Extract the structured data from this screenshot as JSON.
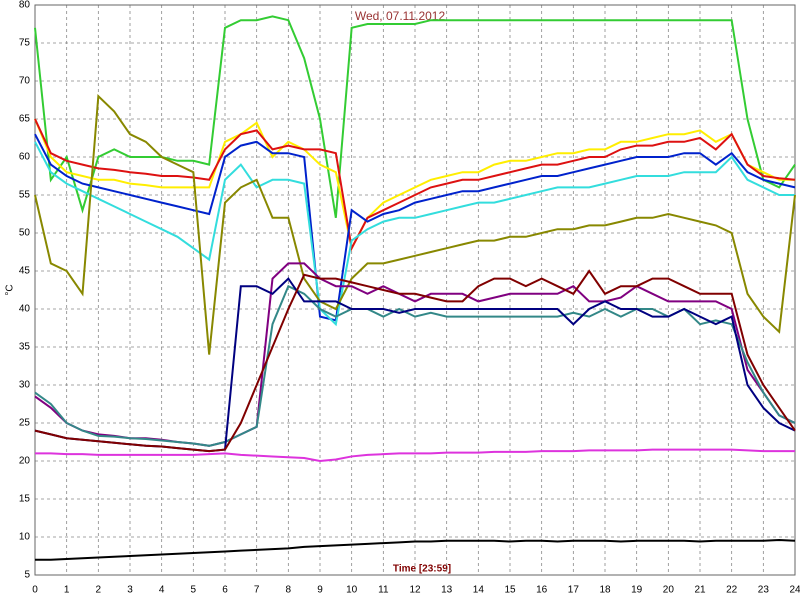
{
  "chart_data": {
    "type": "line",
    "title": "Wed, 07.11.2012",
    "x_label": "Time [23:59]",
    "y_label": "°C",
    "xlim": [
      0,
      24
    ],
    "ylim": [
      5,
      80
    ],
    "xticks": [
      0,
      1,
      2,
      3,
      4,
      5,
      6,
      7,
      8,
      9,
      10,
      11,
      12,
      13,
      14,
      15,
      16,
      17,
      18,
      19,
      20,
      21,
      22,
      23,
      24
    ],
    "yticks": [
      5,
      10,
      15,
      20,
      25,
      30,
      35,
      40,
      45,
      50,
      55,
      60,
      65,
      70,
      75,
      80
    ],
    "grid": true,
    "x": [
      0,
      0.5,
      1,
      1.5,
      2,
      2.5,
      3,
      3.5,
      4,
      4.5,
      5,
      5.5,
      6,
      6.5,
      7,
      7.5,
      8,
      8.5,
      9,
      9.5,
      10,
      10.5,
      11,
      11.5,
      12,
      12.5,
      13,
      13.5,
      14,
      14.5,
      15,
      15.5,
      16,
      16.5,
      17,
      17.5,
      18,
      18.5,
      19,
      19.5,
      20,
      20.5,
      21,
      21.5,
      22,
      22.5,
      23,
      23.5,
      24
    ],
    "series": [
      {
        "color": "#33cc33",
        "values": [
          77,
          57,
          60,
          53,
          60,
          61,
          60,
          60,
          60,
          59.5,
          59.5,
          59,
          77,
          78,
          78,
          78.5,
          78,
          73,
          65,
          52,
          77,
          77.5,
          77.5,
          77.5,
          77.5,
          78,
          78,
          78,
          78,
          78,
          78,
          78,
          78,
          78,
          78,
          78,
          78,
          78,
          78,
          78,
          78,
          78,
          78,
          78,
          78,
          65,
          57,
          56,
          59
        ]
      },
      {
        "color": "#ffee00",
        "values": [
          65,
          60,
          58,
          57.5,
          57,
          57,
          56.5,
          56.3,
          56,
          56,
          56,
          56,
          62,
          63,
          64.5,
          60,
          62,
          61,
          59,
          58,
          48,
          52,
          54,
          55,
          56,
          57,
          57.5,
          58,
          58,
          59,
          59.5,
          59.5,
          60,
          60.5,
          60.5,
          61,
          61,
          62,
          62,
          62.5,
          63,
          63,
          63.5,
          62,
          63,
          59,
          58,
          57,
          57
        ]
      },
      {
        "color": "#dd1111",
        "values": [
          65,
          60.5,
          59.5,
          59,
          58.5,
          58.3,
          58,
          57.8,
          57.5,
          57.5,
          57.3,
          57,
          61,
          63,
          63.5,
          61,
          61.5,
          61,
          61,
          60.5,
          48,
          52,
          53,
          54,
          55,
          56,
          56.5,
          57,
          57,
          57.5,
          58,
          58.5,
          59,
          59,
          59.5,
          60,
          60,
          61,
          61.5,
          61.5,
          62,
          62,
          62.5,
          61,
          63,
          59,
          57.5,
          57.2,
          57
        ]
      },
      {
        "color": "#0022cc",
        "values": [
          63,
          59,
          57.5,
          56.5,
          56,
          55.5,
          55,
          54.5,
          54,
          53.5,
          53,
          52.5,
          60,
          61.5,
          62,
          60.5,
          60.5,
          60,
          39,
          38.5,
          53,
          51.5,
          52.5,
          53,
          54,
          54.5,
          55,
          55.5,
          55.5,
          56,
          56.5,
          57,
          57.5,
          57.5,
          58,
          58.5,
          59,
          59.5,
          60,
          60,
          60,
          60.5,
          60.5,
          59,
          60.5,
          58,
          57,
          56.5,
          56
        ]
      },
      {
        "color": "#33dddd",
        "values": [
          62,
          58,
          56.5,
          55.5,
          54.5,
          53.5,
          52.5,
          51.5,
          50.5,
          49.5,
          48,
          46.5,
          57,
          59,
          56,
          57,
          57,
          56.5,
          40,
          38,
          49,
          50.5,
          51.5,
          52,
          52,
          52.5,
          53,
          53.5,
          54,
          54,
          54.5,
          55,
          55.5,
          56,
          56,
          56,
          56.5,
          57,
          57.5,
          57.5,
          57.5,
          58,
          58,
          58,
          60,
          57,
          56,
          55,
          55
        ]
      },
      {
        "color": "#888800",
        "values": [
          55,
          46,
          45,
          42,
          68,
          66,
          63,
          62,
          60,
          59,
          58,
          34,
          54,
          56,
          57,
          52,
          52,
          44,
          41,
          40,
          44,
          46,
          46,
          46.5,
          47,
          47.5,
          48,
          48.5,
          49,
          49,
          49.5,
          49.5,
          50,
          50.5,
          50.5,
          51,
          51,
          51.5,
          52,
          52,
          52.5,
          52,
          51.5,
          51,
          50,
          42,
          39,
          37,
          55
        ]
      },
      {
        "color": "#800080",
        "values": [
          28.5,
          27,
          25,
          24,
          23.5,
          23.3,
          23,
          23,
          22.8,
          22.5,
          22.3,
          22,
          22.5,
          23.5,
          24.5,
          44,
          46,
          46,
          44,
          43,
          43,
          42,
          43,
          42,
          41,
          42,
          42,
          42,
          41,
          41.5,
          42,
          42,
          42,
          42,
          43,
          41,
          41,
          41.5,
          43,
          42,
          41,
          41,
          41,
          41,
          40,
          32,
          29,
          26,
          25
        ]
      },
      {
        "color": "#338888",
        "values": [
          29,
          27.5,
          25,
          24,
          23.3,
          23.2,
          23,
          22.9,
          22.7,
          22.5,
          22.3,
          22,
          22.5,
          23.5,
          24.5,
          38,
          43,
          42,
          40,
          39,
          40,
          40,
          39,
          40,
          39,
          39.5,
          39,
          39,
          39,
          39,
          39,
          39,
          39,
          39,
          39.5,
          39,
          40,
          39,
          40,
          40,
          39,
          40,
          38,
          38.5,
          38,
          33,
          29,
          26,
          25
        ]
      },
      {
        "color": "#000080",
        "values": [
          24,
          23.5,
          23,
          22.8,
          22.6,
          22.4,
          22.2,
          22,
          21.9,
          21.7,
          21.5,
          21.3,
          21.5,
          43,
          43,
          42,
          44,
          41,
          41,
          41,
          40,
          40,
          40,
          39.5,
          40,
          40,
          40,
          40,
          40,
          40,
          40,
          40,
          40,
          40,
          38,
          40,
          41,
          40,
          40,
          39,
          39,
          40,
          39,
          38,
          39,
          30,
          27,
          25,
          24
        ]
      },
      {
        "color": "#800000",
        "values": [
          24,
          23.5,
          23,
          22.8,
          22.6,
          22.4,
          22.2,
          22,
          21.9,
          21.7,
          21.5,
          21.3,
          21.5,
          25,
          30,
          35,
          40,
          44.5,
          44,
          44,
          43.5,
          43,
          42.5,
          42,
          42,
          41.5,
          41,
          41,
          43,
          44,
          44,
          43,
          44,
          43,
          42,
          45,
          42,
          43,
          43,
          44,
          44,
          43,
          42,
          42,
          42,
          34,
          30,
          27,
          24
        ]
      },
      {
        "color": "#dd33dd",
        "values": [
          21,
          21,
          20.9,
          20.9,
          20.8,
          20.8,
          20.8,
          20.8,
          20.8,
          20.8,
          20.8,
          20.9,
          21,
          20.8,
          20.7,
          20.6,
          20.5,
          20.4,
          20,
          20.2,
          20.6,
          20.8,
          20.9,
          21,
          21,
          21,
          21.1,
          21.1,
          21.1,
          21.2,
          21.2,
          21.2,
          21.3,
          21.3,
          21.3,
          21.4,
          21.4,
          21.4,
          21.4,
          21.5,
          21.5,
          21.5,
          21.5,
          21.5,
          21.5,
          21.4,
          21.3,
          21.3,
          21.3
        ]
      },
      {
        "color": "#000000",
        "values": [
          7,
          7,
          7.1,
          7.2,
          7.3,
          7.4,
          7.5,
          7.6,
          7.7,
          7.8,
          7.9,
          8,
          8.1,
          8.2,
          8.3,
          8.4,
          8.5,
          8.7,
          8.8,
          8.9,
          9,
          9.1,
          9.2,
          9.3,
          9.4,
          9.4,
          9.5,
          9.5,
          9.5,
          9.5,
          9.4,
          9.5,
          9.5,
          9.4,
          9.5,
          9.5,
          9.5,
          9.4,
          9.5,
          9.5,
          9.5,
          9.5,
          9.4,
          9.5,
          9.5,
          9.5,
          9.5,
          9.6,
          9.5
        ]
      }
    ]
  }
}
